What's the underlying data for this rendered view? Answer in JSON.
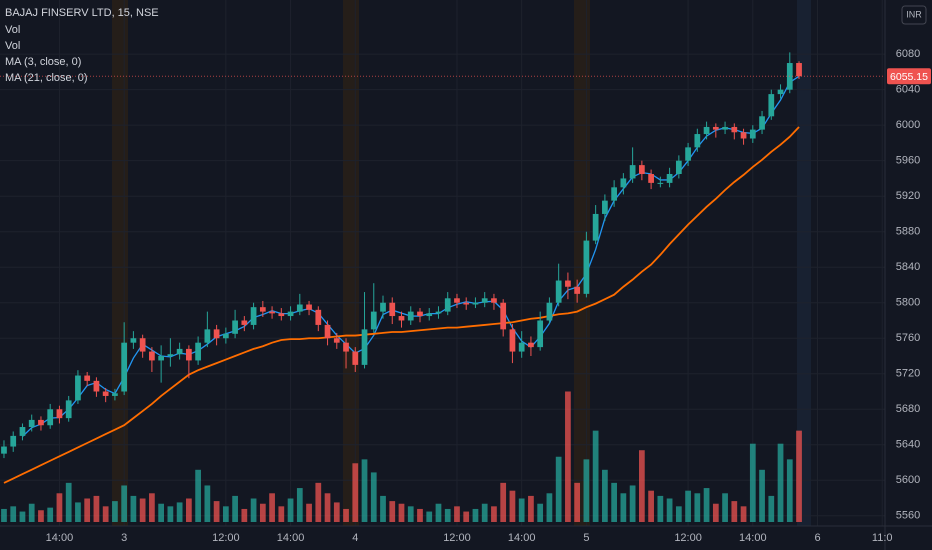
{
  "chart_data": {
    "type": "candlestick",
    "title": "BAJAJ FINSERV LTD, 15, NSE",
    "currency": "INR",
    "indicators": [
      "Vol",
      "Vol"
    ],
    "up_color": "#26a69a",
    "down_color": "#ef5350",
    "grid": true,
    "ylim": [
      5544,
      6141
    ],
    "yticks": [
      5560,
      5600,
      5640,
      5680,
      5720,
      5760,
      5800,
      5840,
      5880,
      5920,
      5960,
      6000,
      6040,
      6080
    ],
    "xlim": [
      -0.43,
      95.3
    ],
    "xticks": [
      {
        "value": 6,
        "label": "14:00"
      },
      {
        "value": 13,
        "label": "3"
      },
      {
        "value": 24,
        "label": "12:00"
      },
      {
        "value": 31,
        "label": "14:00"
      },
      {
        "value": 38,
        "label": "4"
      },
      {
        "value": 49,
        "label": "12:00"
      },
      {
        "value": 56,
        "label": "14:00"
      },
      {
        "value": 63,
        "label": "5"
      },
      {
        "value": 74,
        "label": "12:00"
      },
      {
        "value": 81,
        "label": "14:00"
      },
      {
        "value": 88,
        "label": "6"
      },
      {
        "value": 95,
        "label": "11:0"
      }
    ],
    "y2lim": [
      0,
      400
    ],
    "candles": [
      [
        5630,
        5645,
        5625,
        5638
      ],
      [
        5638,
        5655,
        5632,
        5650
      ],
      [
        5650,
        5664,
        5645,
        5660
      ],
      [
        5660,
        5674,
        5655,
        5668
      ],
      [
        5668,
        5672,
        5656,
        5662
      ],
      [
        5662,
        5686,
        5658,
        5680
      ],
      [
        5680,
        5684,
        5664,
        5670
      ],
      [
        5670,
        5695,
        5666,
        5690
      ],
      [
        5690,
        5724,
        5686,
        5718
      ],
      [
        5718,
        5722,
        5706,
        5712
      ],
      [
        5712,
        5716,
        5694,
        5700
      ],
      [
        5700,
        5704,
        5688,
        5695
      ],
      [
        5695,
        5703,
        5690,
        5698
      ],
      [
        5700,
        5778,
        5696,
        5755
      ],
      [
        5755,
        5768,
        5748,
        5760
      ],
      [
        5760,
        5764,
        5738,
        5745
      ],
      [
        5745,
        5750,
        5722,
        5735
      ],
      [
        5735,
        5752,
        5710,
        5740
      ],
      [
        5740,
        5760,
        5728,
        5742
      ],
      [
        5742,
        5755,
        5736,
        5748
      ],
      [
        5748,
        5752,
        5715,
        5735
      ],
      [
        5735,
        5762,
        5730,
        5755
      ],
      [
        5755,
        5790,
        5750,
        5770
      ],
      [
        5770,
        5775,
        5752,
        5760
      ],
      [
        5760,
        5772,
        5754,
        5765
      ],
      [
        5765,
        5792,
        5760,
        5780
      ],
      [
        5780,
        5785,
        5768,
        5775
      ],
      [
        5775,
        5800,
        5770,
        5795
      ],
      [
        5795,
        5802,
        5784,
        5790
      ],
      [
        5790,
        5796,
        5782,
        5788
      ],
      [
        5788,
        5794,
        5780,
        5785
      ],
      [
        5785,
        5796,
        5780,
        5790
      ],
      [
        5790,
        5810,
        5786,
        5798
      ],
      [
        5798,
        5802,
        5786,
        5792
      ],
      [
        5792,
        5796,
        5768,
        5775
      ],
      [
        5775,
        5780,
        5752,
        5760
      ],
      [
        5760,
        5766,
        5748,
        5755
      ],
      [
        5755,
        5760,
        5726,
        5745
      ],
      [
        5745,
        5750,
        5722,
        5730
      ],
      [
        5730,
        5812,
        5726,
        5770
      ],
      [
        5770,
        5822,
        5766,
        5790
      ],
      [
        5790,
        5808,
        5782,
        5800
      ],
      [
        5800,
        5806,
        5776,
        5785
      ],
      [
        5785,
        5790,
        5772,
        5780
      ],
      [
        5780,
        5796,
        5775,
        5790
      ],
      [
        5790,
        5794,
        5778,
        5785
      ],
      [
        5785,
        5794,
        5780,
        5788
      ],
      [
        5788,
        5796,
        5782,
        5790
      ],
      [
        5790,
        5812,
        5786,
        5805
      ],
      [
        5805,
        5810,
        5794,
        5800
      ],
      [
        5800,
        5806,
        5792,
        5798
      ],
      [
        5798,
        5806,
        5794,
        5800
      ],
      [
        5800,
        5812,
        5795,
        5805
      ],
      [
        5805,
        5810,
        5792,
        5800
      ],
      [
        5800,
        5804,
        5762,
        5770
      ],
      [
        5770,
        5776,
        5732,
        5745
      ],
      [
        5745,
        5768,
        5738,
        5755
      ],
      [
        5755,
        5762,
        5740,
        5750
      ],
      [
        5750,
        5790,
        5746,
        5780
      ],
      [
        5780,
        5806,
        5776,
        5800
      ],
      [
        5800,
        5844,
        5796,
        5825
      ],
      [
        5825,
        5834,
        5804,
        5818
      ],
      [
        5818,
        5826,
        5800,
        5810
      ],
      [
        5810,
        5880,
        5806,
        5870
      ],
      [
        5870,
        5910,
        5866,
        5900
      ],
      [
        5900,
        5922,
        5892,
        5915
      ],
      [
        5915,
        5938,
        5908,
        5930
      ],
      [
        5930,
        5946,
        5922,
        5940
      ],
      [
        5940,
        5975,
        5935,
        5955
      ],
      [
        5955,
        5960,
        5938,
        5945
      ],
      [
        5945,
        5950,
        5928,
        5935
      ],
      [
        5935,
        5942,
        5930,
        5935
      ],
      [
        5935,
        5952,
        5930,
        5945
      ],
      [
        5945,
        5966,
        5940,
        5960
      ],
      [
        5960,
        5980,
        5954,
        5975
      ],
      [
        5975,
        5996,
        5970,
        5990
      ],
      [
        5990,
        6004,
        5984,
        5998
      ],
      [
        5998,
        6002,
        5986,
        5995
      ],
      [
        5995,
        6004,
        5990,
        5998
      ],
      [
        5998,
        6002,
        5984,
        5992
      ],
      [
        5992,
        5996,
        5978,
        5985
      ],
      [
        5985,
        6000,
        5980,
        5995
      ],
      [
        5995,
        6016,
        5990,
        6010
      ],
      [
        6010,
        6040,
        6006,
        6035
      ],
      [
        6035,
        6046,
        6030,
        6040
      ],
      [
        6040,
        6082,
        6036,
        6070
      ],
      [
        6070,
        6072,
        6052,
        6055.15
      ]
    ],
    "volume": {
      "axis": "y2",
      "values": [
        10,
        12,
        8,
        14,
        9,
        11,
        22,
        30,
        15,
        18,
        20,
        12,
        16,
        28,
        20,
        18,
        22,
        14,
        12,
        15,
        18,
        40,
        28,
        16,
        12,
        20,
        10,
        18,
        14,
        22,
        12,
        18,
        26,
        14,
        30,
        22,
        15,
        10,
        45,
        48,
        38,
        20,
        16,
        14,
        12,
        10,
        8,
        14,
        10,
        12,
        8,
        10,
        14,
        12,
        30,
        24,
        18,
        20,
        14,
        22,
        50,
        100,
        30,
        48,
        70,
        40,
        30,
        22,
        28,
        55,
        24,
        20,
        18,
        12,
        24,
        22,
        26,
        14,
        22,
        16,
        12,
        60,
        40,
        20,
        60,
        48,
        70
      ]
    },
    "series": [
      {
        "name": "MA (3, close, 0)",
        "color": "#2196f3",
        "values": [
          null,
          null,
          5649.3,
          5659.3,
          5663.3,
          5670,
          5670.7,
          5680,
          5692.7,
          5706.7,
          5710,
          5702.3,
          5697.7,
          5716,
          5737.7,
          5753.3,
          5746.7,
          5740,
          5739,
          5743.3,
          5741.7,
          5746,
          5753.3,
          5761.7,
          5765,
          5768.3,
          5773.3,
          5783.3,
          5786.7,
          5791,
          5787.7,
          5787.7,
          5791,
          5793.3,
          5788.3,
          5775.7,
          5763.3,
          5753.3,
          5743.3,
          5748.3,
          5763.3,
          5786.7,
          5791.7,
          5788.3,
          5785,
          5785,
          5787.7,
          5787.7,
          5794.3,
          5798.3,
          5801,
          5799.3,
          5801,
          5801.7,
          5791.7,
          5771.7,
          5756.7,
          5750,
          5761.7,
          5776.7,
          5801.7,
          5814.3,
          5817.7,
          5832.7,
          5860,
          5895,
          5915,
          5928.3,
          5941.7,
          5946.7,
          5945,
          5938.3,
          5938.3,
          5946.7,
          5960,
          5975,
          5987.7,
          5994.3,
          5997,
          5995,
          5991.7,
          5990.7,
          5996.7,
          6013.3,
          6028.3,
          6048.3,
          6055.05
        ]
      },
      {
        "name": "MA (21, close, 0)",
        "color": "#ff6d00",
        "values": [
          5597,
          5602,
          5607,
          5612,
          5617,
          5622,
          5627,
          5632,
          5637,
          5642,
          5647,
          5652,
          5657,
          5662,
          5670,
          5678,
          5686,
          5695,
          5703,
          5711,
          5719,
          5724,
          5728,
          5732,
          5736,
          5740,
          5744,
          5748,
          5751,
          5755,
          5758,
          5759,
          5759,
          5760,
          5760,
          5761,
          5762,
          5763,
          5763,
          5764,
          5765,
          5766,
          5767,
          5767,
          5768,
          5769,
          5770,
          5771,
          5772,
          5772,
          5773,
          5774,
          5775,
          5776,
          5777,
          5778,
          5780,
          5782,
          5783,
          5785,
          5787,
          5788,
          5790,
          5795,
          5799,
          5804,
          5809,
          5818,
          5826,
          5835,
          5843,
          5854,
          5866,
          5877,
          5888,
          5898,
          5908,
          5917,
          5927,
          5936,
          5944,
          5953,
          5961,
          5970,
          5978,
          5987,
          5998
        ]
      }
    ]
  }
}
